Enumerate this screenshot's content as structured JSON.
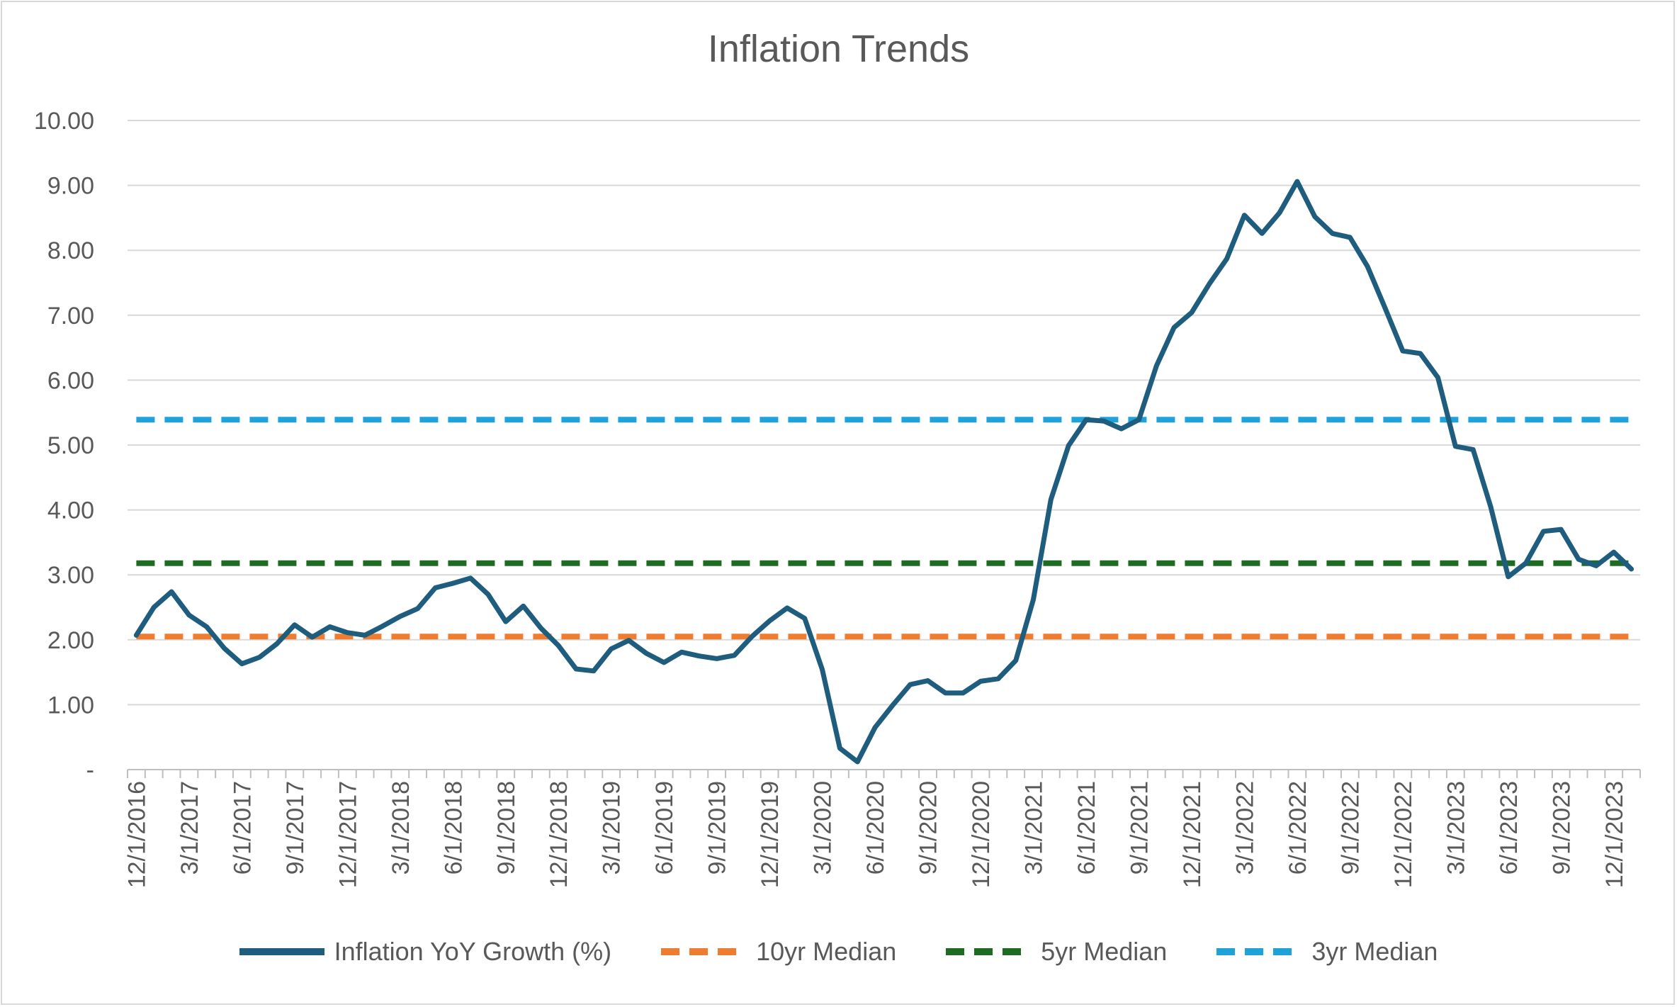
{
  "chart_data": {
    "type": "line",
    "title": "Inflation Trends",
    "xlabel": "",
    "ylabel": "",
    "ylim": [
      0,
      10
    ],
    "yticks": [
      "-",
      "1.00",
      "2.00",
      "3.00",
      "4.00",
      "5.00",
      "6.00",
      "7.00",
      "8.00",
      "9.00",
      "10.00"
    ],
    "x_tick_labels": [
      "12/1/2016",
      "3/1/2017",
      "6/1/2017",
      "9/1/2017",
      "12/1/2017",
      "3/1/2018",
      "6/1/2018",
      "9/1/2018",
      "12/1/2018",
      "3/1/2019",
      "6/1/2019",
      "9/1/2019",
      "12/1/2019",
      "3/1/2020",
      "6/1/2020",
      "9/1/2020",
      "12/1/2020",
      "3/1/2021",
      "6/1/2021",
      "9/1/2021",
      "12/1/2021",
      "3/1/2022",
      "6/1/2022",
      "9/1/2022",
      "12/1/2022",
      "3/1/2023",
      "6/1/2023",
      "9/1/2023",
      "12/1/2023"
    ],
    "x_start": "12/1/2016",
    "x_step": "1 month",
    "grid": true,
    "legend_position": "bottom",
    "series": [
      {
        "name": "Inflation YoY Growth (%)",
        "style": "solid",
        "color": "#1f5d7f",
        "values": [
          2.07,
          2.5,
          2.74,
          2.38,
          2.2,
          1.87,
          1.63,
          1.73,
          1.94,
          2.23,
          2.04,
          2.2,
          2.11,
          2.07,
          2.21,
          2.36,
          2.48,
          2.8,
          2.87,
          2.95,
          2.7,
          2.28,
          2.52,
          2.18,
          1.91,
          1.55,
          1.52,
          1.86,
          1.99,
          1.79,
          1.65,
          1.81,
          1.75,
          1.71,
          1.76,
          2.05,
          2.29,
          2.49,
          2.33,
          1.54,
          0.33,
          0.12,
          0.65,
          0.99,
          1.31,
          1.37,
          1.18,
          1.18,
          1.36,
          1.4,
          1.68,
          2.62,
          4.16,
          4.99,
          5.39,
          5.37,
          5.25,
          5.39,
          6.22,
          6.81,
          7.04,
          7.48,
          7.87,
          8.54,
          8.26,
          8.58,
          9.06,
          8.52,
          8.26,
          8.2,
          7.75,
          7.11,
          6.45,
          6.41,
          6.04,
          4.98,
          4.93,
          4.05,
          2.97,
          3.18,
          3.67,
          3.7,
          3.24,
          3.14,
          3.35,
          3.09
        ]
      },
      {
        "name": "10yr Median",
        "style": "dashed",
        "color": "#ed7d31",
        "value": 2.05
      },
      {
        "name": "5yr Median",
        "style": "dashed",
        "color": "#1e6b24",
        "value": 3.18
      },
      {
        "name": "3yr Median",
        "style": "dashed",
        "color": "#1fa2d8",
        "value": 5.39
      }
    ]
  }
}
